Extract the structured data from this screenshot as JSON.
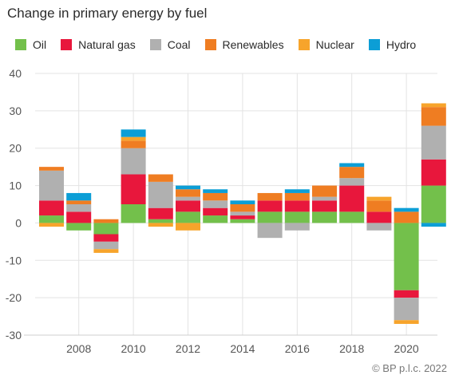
{
  "title": "Change in primary energy by fuel",
  "credit": "© BP p.l.c. 2022",
  "chart_data": {
    "type": "bar",
    "stacked": true,
    "categories": [
      2007,
      2008,
      2009,
      2010,
      2011,
      2012,
      2013,
      2014,
      2015,
      2016,
      2017,
      2018,
      2019,
      2020,
      2021
    ],
    "x_tick_labels": [
      "2008",
      "2010",
      "2012",
      "2014",
      "2016",
      "2018",
      "2020"
    ],
    "ylim": [
      -30,
      40
    ],
    "y_ticks": [
      40,
      30,
      20,
      10,
      0,
      -10,
      -20,
      -30
    ],
    "grid": true,
    "legend_position": "top",
    "series": [
      {
        "name": "Oil",
        "color": "#73c04b",
        "values": [
          2,
          -2,
          -3,
          5,
          1,
          3,
          2,
          1,
          3,
          3,
          3,
          3,
          0,
          -18,
          10
        ]
      },
      {
        "name": "Natural gas",
        "color": "#e8173c",
        "values": [
          4,
          3,
          -2,
          8,
          3,
          3,
          2,
          1,
          3,
          3,
          3,
          7,
          3,
          -2,
          7
        ]
      },
      {
        "name": "Coal",
        "color": "#b0b0b0",
        "values": [
          8,
          2,
          -2,
          7,
          7,
          1,
          2,
          1,
          -4,
          -2,
          1,
          2,
          -2,
          -6,
          9
        ]
      },
      {
        "name": "Renewables",
        "color": "#ef7d22",
        "values": [
          1,
          1,
          1,
          2,
          2,
          2,
          2,
          2,
          2,
          2,
          3,
          3,
          3,
          3,
          5
        ]
      },
      {
        "name": "Nuclear",
        "color": "#f7a42b",
        "values": [
          -1,
          0,
          -1,
          1,
          -1,
          -2,
          0,
          0,
          0,
          0,
          0,
          0,
          1,
          -1,
          1
        ]
      },
      {
        "name": "Hydro",
        "color": "#0c9ed6",
        "values": [
          0,
          2,
          0,
          2,
          0,
          1,
          1,
          1,
          0,
          1,
          0,
          1,
          0,
          1,
          -1
        ]
      }
    ]
  }
}
